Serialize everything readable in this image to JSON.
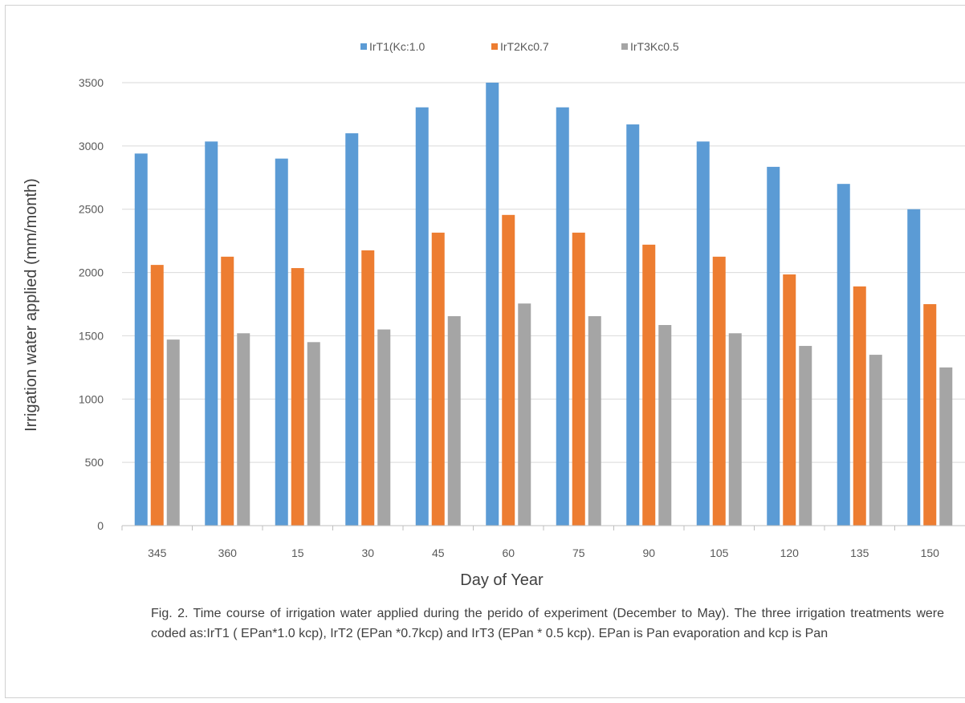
{
  "chart_data": {
    "type": "bar",
    "title": "",
    "xlabel": "Day of Year",
    "ylabel": "Irrigation water applied (mm/month)",
    "categories": [
      "345",
      "360",
      "15",
      "30",
      "45",
      "60",
      "75",
      "90",
      "105",
      "120",
      "135",
      "150"
    ],
    "series": [
      {
        "name": "IrT1(Kc:1.0",
        "color": "#5b9bd5",
        "values": [
          2940,
          3035,
          2900,
          3100,
          3305,
          3500,
          3305,
          3170,
          3035,
          2835,
          2700,
          2500
        ]
      },
      {
        "name": "IrT2Kc0.7",
        "color": "#ed7d31",
        "values": [
          2060,
          2125,
          2035,
          2175,
          2315,
          2455,
          2315,
          2220,
          2125,
          1985,
          1890,
          1750
        ]
      },
      {
        "name": "IrT3Kc0.5",
        "color": "#a5a5a5",
        "values": [
          1470,
          1520,
          1450,
          1550,
          1655,
          1755,
          1655,
          1585,
          1520,
          1420,
          1350,
          1250
        ]
      }
    ],
    "ylim": [
      0,
      3500
    ],
    "yticks": [
      "0",
      "500",
      "1000",
      "1500",
      "2000",
      "2500",
      "3000",
      "3500"
    ],
    "grid": true,
    "legend_position": "top"
  },
  "caption": "Fig. 2. Time course of irrigation water applied during the perido of experiment (December to May). The three irrigation treatments were coded as:IrT1 ( EPan*1.0 kcp), IrT2 (EPan *0.7kcp) and IrT3 (EPan * 0.5 kcp). EPan is Pan evaporation and kcp is Pan"
}
